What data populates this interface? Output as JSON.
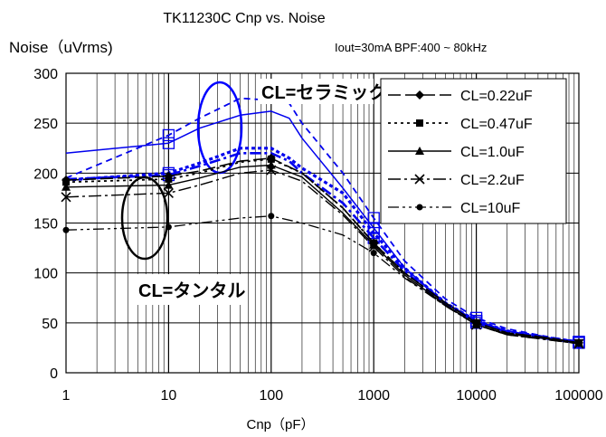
{
  "chart_data": {
    "type": "line",
    "title": "TK11230C    Cnp vs. Noise",
    "subtitle": "Iout=30mA    BPF:400 ~ 80kHz",
    "ylabel": "Noise（uVrms)",
    "xlabel": "Cnp（pF）",
    "x_scale": "log",
    "xlim": [
      1,
      100000
    ],
    "ylim": [
      0,
      300
    ],
    "x_ticks": [
      "1",
      "10",
      "100",
      "1000",
      "10000",
      "100000"
    ],
    "y_ticks": [
      "0",
      "50",
      "100",
      "150",
      "200",
      "250",
      "300"
    ],
    "grid": true,
    "legend_position": "top-right",
    "annotations": {
      "ceramic": "CL=セラミック",
      "tantalum": "CL=タンタル"
    },
    "series": [
      {
        "name": "CL=0.22uF",
        "group": "tantalum",
        "x": [
          1,
          10,
          20,
          50,
          100,
          200,
          500,
          1000,
          2000,
          5000,
          10000,
          20000,
          50000,
          100000
        ],
        "y": [
          193,
          197,
          202,
          212,
          215,
          200,
          165,
          130,
          100,
          70,
          50,
          40,
          35,
          30
        ]
      },
      {
        "name": "CL=0.47uF",
        "group": "tantalum",
        "x": [
          1,
          10,
          20,
          50,
          100,
          200,
          500,
          1000,
          2000,
          5000,
          10000,
          20000,
          50000,
          100000
        ],
        "y": [
          191,
          194,
          200,
          211,
          214,
          200,
          165,
          130,
          100,
          70,
          50,
          40,
          35,
          30
        ]
      },
      {
        "name": "CL=1.0uF",
        "group": "tantalum",
        "x": [
          1,
          10,
          20,
          50,
          100,
          200,
          500,
          1000,
          2000,
          5000,
          10000,
          20000,
          50000,
          100000
        ],
        "y": [
          186,
          188,
          195,
          206,
          208,
          196,
          160,
          128,
          98,
          68,
          48,
          39,
          34,
          30
        ]
      },
      {
        "name": "CL=2.2uF",
        "group": "tantalum",
        "x": [
          1,
          10,
          20,
          50,
          100,
          200,
          500,
          1000,
          2000,
          5000,
          10000,
          20000,
          50000,
          100000
        ],
        "y": [
          176,
          180,
          188,
          200,
          203,
          192,
          158,
          126,
          96,
          67,
          48,
          38,
          33,
          29
        ]
      },
      {
        "name": "CL=10uF",
        "group": "tantalum",
        "x": [
          1,
          10,
          20,
          50,
          100,
          200,
          500,
          1000,
          2000,
          5000,
          10000,
          20000,
          50000,
          100000
        ],
        "y": [
          143,
          146,
          150,
          155,
          157,
          150,
          138,
          120,
          95,
          67,
          48,
          38,
          33,
          29
        ]
      },
      {
        "group": "ceramic",
        "x": [
          1,
          10,
          20,
          50,
          100,
          150,
          200,
          500,
          1000,
          2000,
          5000,
          10000,
          20000,
          50000,
          100000
        ],
        "y": [
          220,
          230,
          245,
          258,
          262,
          255,
          235,
          185,
          145,
          105,
          70,
          52,
          42,
          35,
          30
        ]
      },
      {
        "group": "ceramic",
        "x": [
          1,
          10,
          20,
          50,
          100,
          150,
          200,
          500,
          1000,
          2000,
          5000,
          10000,
          20000,
          50000,
          100000
        ],
        "y": [
          195,
          238,
          255,
          275,
          273,
          270,
          250,
          200,
          155,
          112,
          74,
          55,
          44,
          36,
          31
        ]
      },
      {
        "group": "ceramic",
        "x": [
          1,
          10,
          20,
          50,
          100,
          150,
          200,
          500,
          1000,
          2000,
          5000,
          10000,
          20000,
          50000,
          100000
        ],
        "y": [
          193,
          200,
          210,
          225,
          225,
          215,
          205,
          180,
          140,
          105,
          70,
          52,
          42,
          35,
          31
        ]
      },
      {
        "group": "ceramic",
        "x": [
          1,
          10,
          20,
          50,
          100,
          150,
          200,
          500,
          1000,
          2000,
          5000,
          10000,
          20000,
          50000,
          100000
        ],
        "y": [
          194,
          198,
          207,
          220,
          220,
          212,
          200,
          170,
          135,
          102,
          68,
          50,
          41,
          34,
          30
        ]
      }
    ]
  }
}
